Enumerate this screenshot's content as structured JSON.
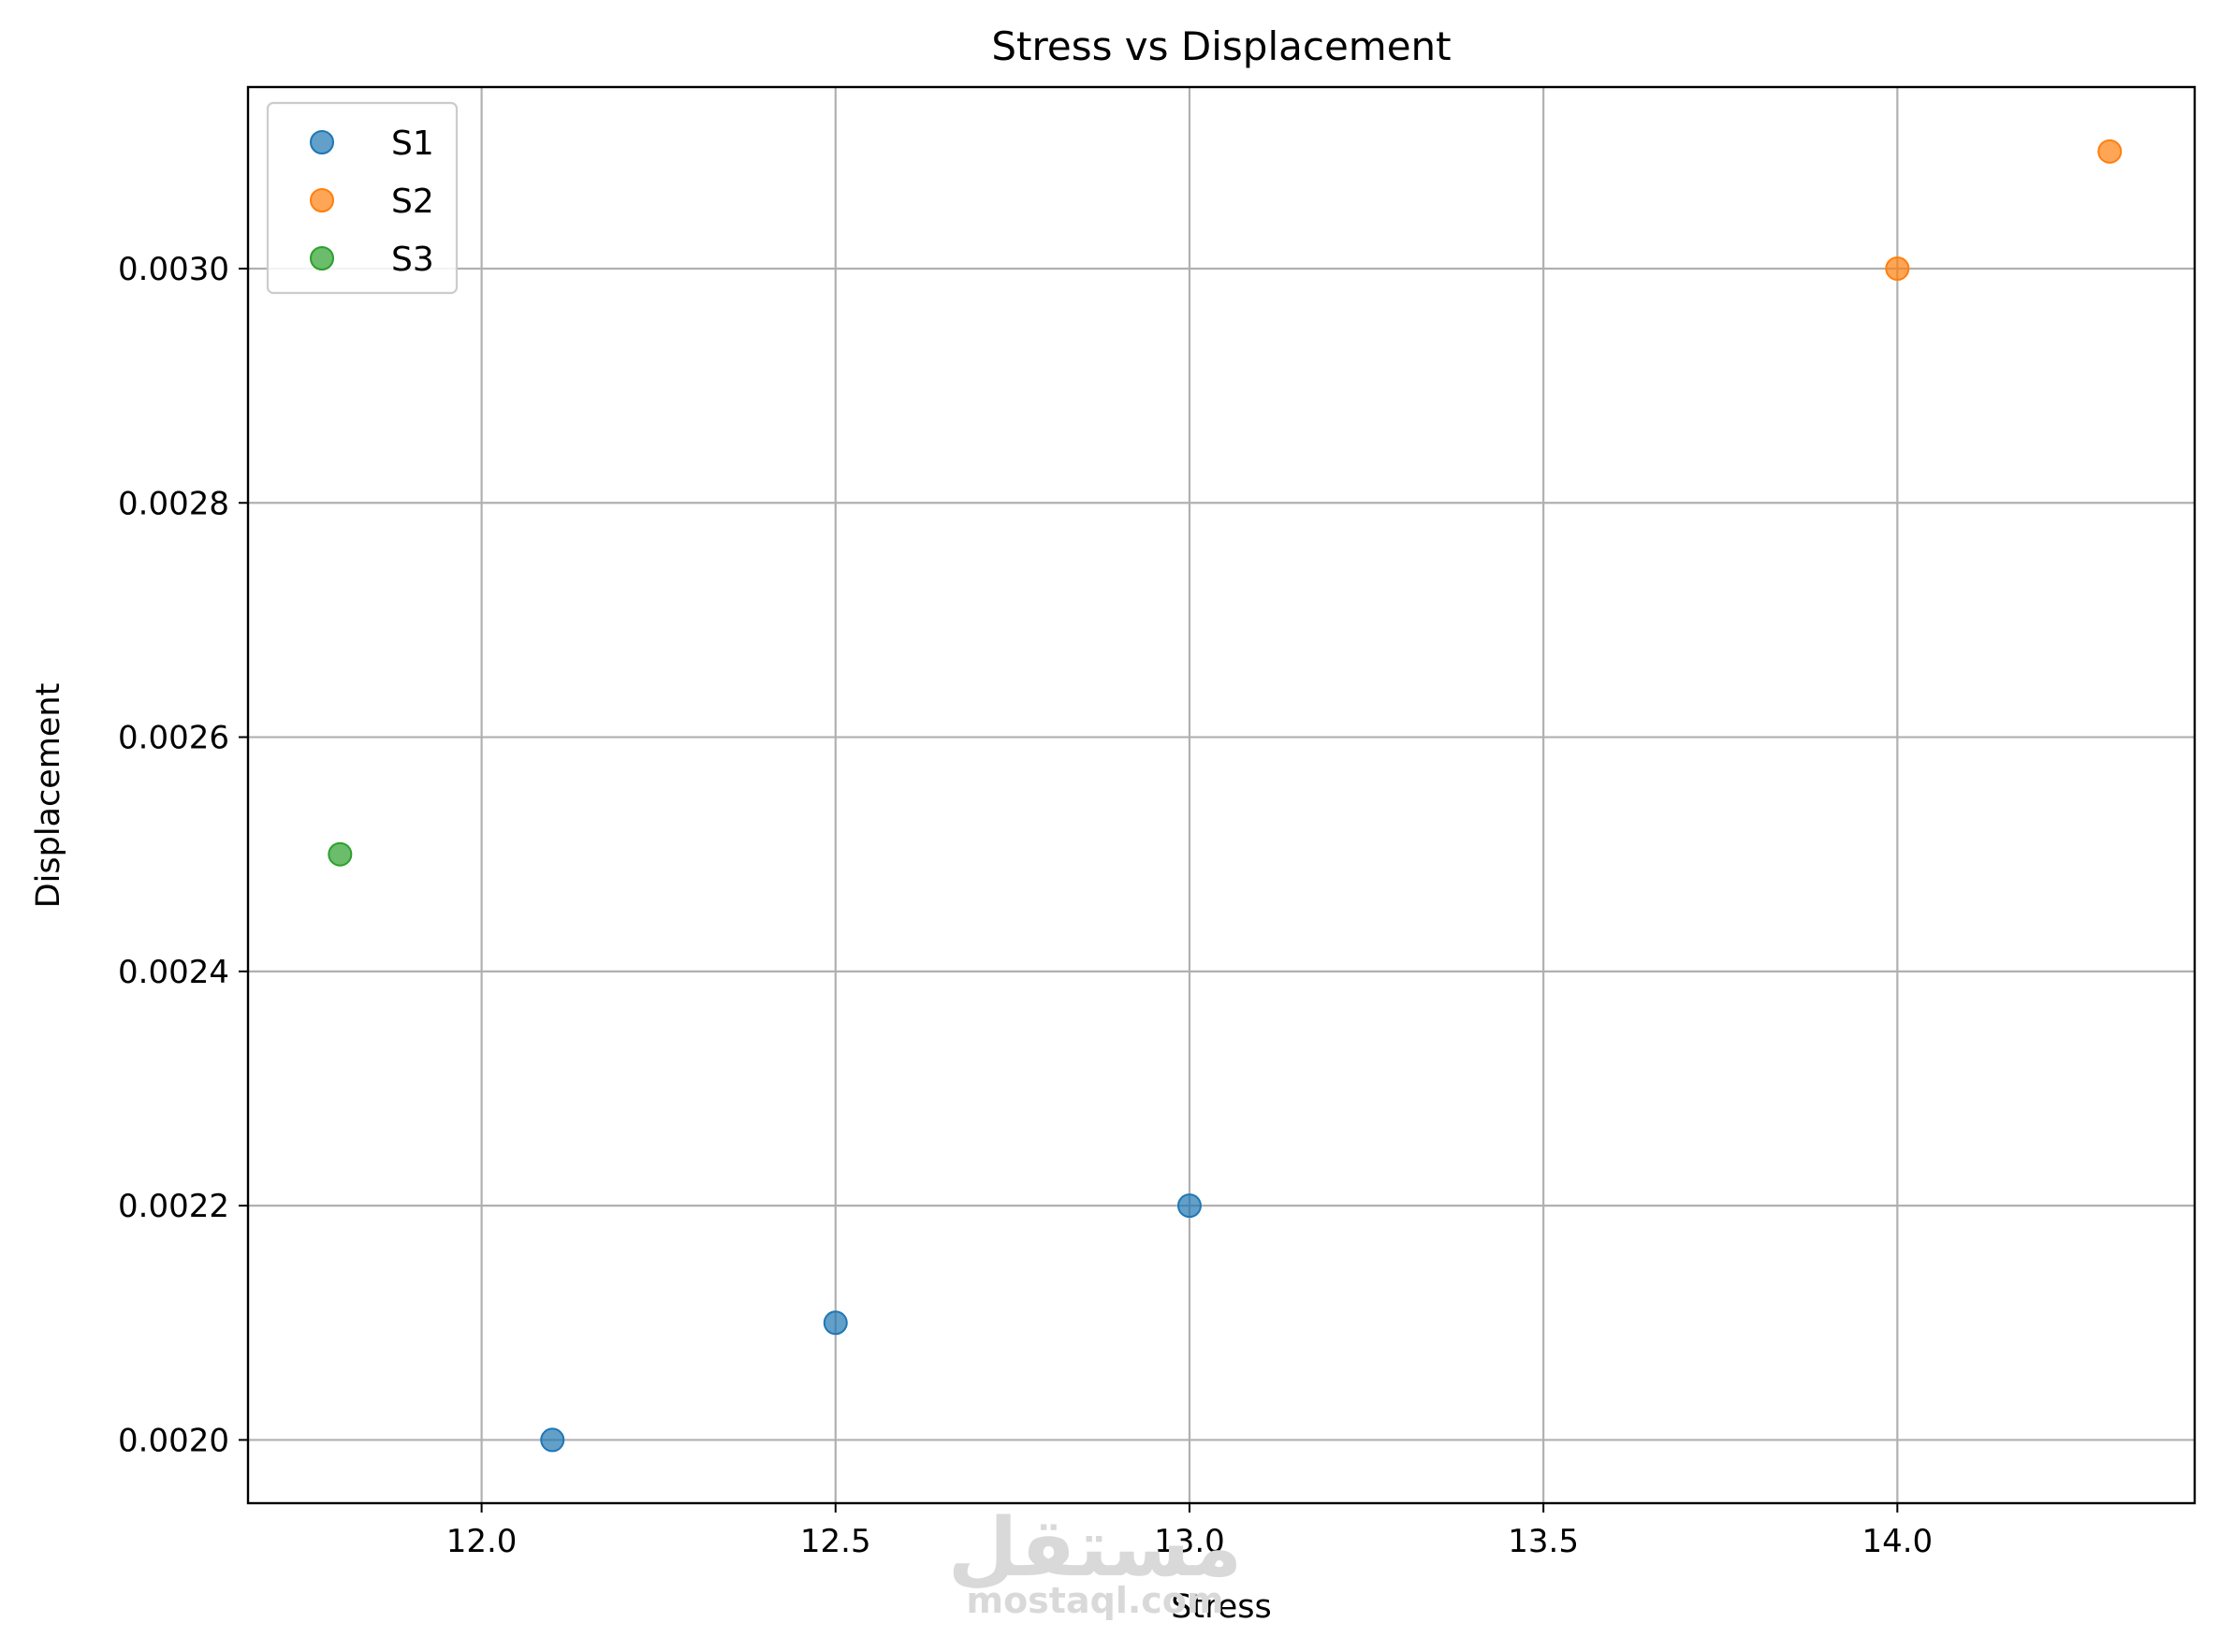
{
  "chart_data": {
    "type": "scatter",
    "title": "Stress vs Displacement",
    "xlabel": "Stress",
    "ylabel": "Displacement",
    "xlim": [
      11.67,
      14.42
    ],
    "ylim": [
      0.001946,
      0.003155
    ],
    "xticks": [
      12.0,
      12.5,
      13.0,
      13.5,
      14.0
    ],
    "xtick_labels": [
      "12.0",
      "12.5",
      "13.0",
      "13.5",
      "14.0"
    ],
    "yticks": [
      0.002,
      0.0022,
      0.0024,
      0.0026,
      0.0028,
      0.003
    ],
    "ytick_labels": [
      "0.0020",
      "0.0022",
      "0.0024",
      "0.0026",
      "0.0028",
      "0.0030"
    ],
    "grid": true,
    "legend_position": "top-left",
    "series": [
      {
        "name": "S1",
        "color": "#1f77b4",
        "points": [
          [
            12.1,
            0.002
          ],
          [
            12.5,
            0.0021
          ],
          [
            13.0,
            0.0022
          ]
        ]
      },
      {
        "name": "S2",
        "color": "#ff7f0e",
        "points": [
          [
            14.0,
            0.003
          ],
          [
            14.3,
            0.0031
          ]
        ]
      },
      {
        "name": "S3",
        "color": "#2ca02c",
        "points": [
          [
            11.8,
            0.0025
          ]
        ]
      }
    ]
  },
  "watermark": {
    "arabic": "مستقل",
    "latin": "mostaql.com"
  }
}
